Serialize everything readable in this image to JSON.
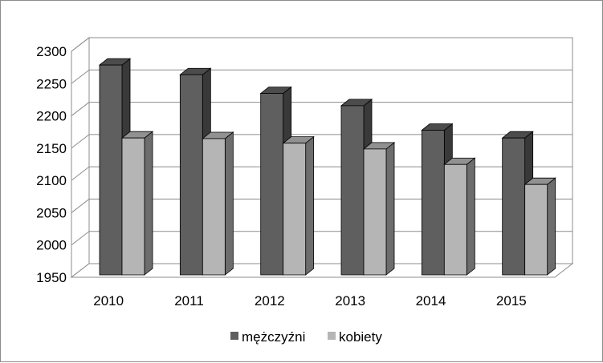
{
  "chart_data": {
    "type": "bar",
    "categories": [
      "2010",
      "2011",
      "2012",
      "2013",
      "2014",
      "2015"
    ],
    "series": [
      {
        "name": "mężczyźni",
        "values": [
          2275,
          2260,
          2231,
          2212,
          2174,
          2162
        ],
        "color": "#5f5f5f"
      },
      {
        "name": "kobiety",
        "values": [
          2162,
          2161,
          2154,
          2145,
          2121,
          2090
        ],
        "color": "#b5b5b5"
      }
    ],
    "ylim": [
      1950,
      2300
    ],
    "yticks": [
      "1950",
      "2000",
      "2050",
      "2100",
      "2150",
      "2200",
      "2250",
      "2300"
    ],
    "grid": true,
    "legend_position": "bottom",
    "style": "3d-clustered-column"
  }
}
